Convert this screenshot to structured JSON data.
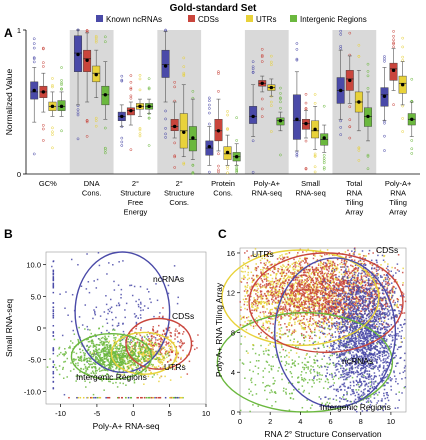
{
  "title": "Gold-standard Set",
  "legend": [
    {
      "name": "Known ncRNAs",
      "color": "#4a4aa8"
    },
    {
      "name": "CDSs",
      "color": "#c9453c"
    },
    {
      "name": "UTRs",
      "color": "#e8d23a"
    },
    {
      "name": "Intergenic Regions",
      "color": "#6bb83e"
    }
  ],
  "chart_data": [
    {
      "panel": "A",
      "type": "box",
      "ylabel": "Normalized Value",
      "ylim": [
        0,
        1
      ],
      "yticks": [
        "0",
        "1"
      ],
      "categories": [
        {
          "label": [
            "GC%"
          ],
          "shaded": false
        },
        {
          "label": [
            "DNA",
            "Cons."
          ],
          "shaded": true
        },
        {
          "label": [
            "2°",
            "Structure",
            "Free",
            "Energy"
          ],
          "shaded": false
        },
        {
          "label": [
            "2°",
            "Structure",
            "Cons."
          ],
          "shaded": true
        },
        {
          "label": [
            "Protein",
            "Cons."
          ],
          "shaded": false
        },
        {
          "label": [
            "Poly-A+",
            "RNA-seq"
          ],
          "shaded": true
        },
        {
          "label": [
            "Small",
            "RNA-seq"
          ],
          "shaded": false
        },
        {
          "label": [
            "Total",
            "RNA",
            "Tiling",
            "Array"
          ],
          "shaded": true
        },
        {
          "label": [
            "Poly-A+",
            "RNA",
            "Tiling",
            "Array"
          ],
          "shaded": false
        }
      ],
      "boxes": [
        [
          [
            0.36,
            0.52,
            0.57,
            0.64,
            0.74
          ],
          [
            0.43,
            0.53,
            0.57,
            0.61,
            0.7
          ],
          [
            0.4,
            0.44,
            0.47,
            0.5,
            0.57
          ],
          [
            0.4,
            0.44,
            0.47,
            0.51,
            0.57
          ]
        ],
        [
          [
            0.48,
            0.71,
            0.84,
            0.96,
            1.0
          ],
          [
            0.5,
            0.71,
            0.8,
            0.86,
            0.98
          ],
          [
            0.53,
            0.64,
            0.7,
            0.75,
            0.86
          ],
          [
            0.38,
            0.48,
            0.55,
            0.61,
            0.78
          ]
        ],
        [
          [
            0.33,
            0.37,
            0.4,
            0.43,
            0.48
          ],
          [
            0.34,
            0.41,
            0.44,
            0.46,
            0.5
          ],
          [
            0.4,
            0.45,
            0.47,
            0.49,
            0.52
          ],
          [
            0.42,
            0.45,
            0.47,
            0.49,
            0.52
          ]
        ],
        [
          [
            0.5,
            0.67,
            0.76,
            0.86,
            0.99
          ],
          [
            0.25,
            0.3,
            0.33,
            0.38,
            0.5
          ],
          [
            0.12,
            0.18,
            0.3,
            0.42,
            0.62
          ],
          [
            0.1,
            0.16,
            0.24,
            0.33,
            0.52
          ]
        ],
        [
          [
            0.06,
            0.13,
            0.18,
            0.23,
            0.33
          ],
          [
            0.16,
            0.23,
            0.3,
            0.38,
            0.52
          ],
          [
            0.06,
            0.1,
            0.14,
            0.19,
            0.27
          ],
          [
            0.06,
            0.09,
            0.12,
            0.15,
            0.21
          ]
        ],
        [
          [
            0.26,
            0.35,
            0.4,
            0.47,
            0.62
          ],
          [
            0.57,
            0.61,
            0.63,
            0.65,
            0.68
          ],
          [
            0.54,
            0.58,
            0.6,
            0.62,
            0.66
          ],
          [
            0.3,
            0.34,
            0.37,
            0.39,
            0.43
          ]
        ],
        [
          [
            0.16,
            0.24,
            0.37,
            0.55,
            0.71
          ],
          [
            0.25,
            0.31,
            0.35,
            0.38,
            0.44
          ],
          [
            0.17,
            0.25,
            0.3,
            0.37,
            0.47
          ],
          [
            0.15,
            0.2,
            0.24,
            0.28,
            0.34
          ]
        ],
        [
          [
            0.38,
            0.49,
            0.58,
            0.67,
            0.86
          ],
          [
            0.49,
            0.58,
            0.66,
            0.72,
            0.82
          ],
          [
            0.3,
            0.43,
            0.5,
            0.57,
            0.72
          ],
          [
            0.23,
            0.33,
            0.4,
            0.46,
            0.57
          ]
        ],
        [
          [
            0.37,
            0.47,
            0.55,
            0.6,
            0.74
          ],
          [
            0.58,
            0.65,
            0.73,
            0.77,
            0.87
          ],
          [
            0.48,
            0.56,
            0.63,
            0.68,
            0.78
          ],
          [
            0.26,
            0.34,
            0.38,
            0.42,
            0.5
          ]
        ]
      ],
      "means": [
        [
          0.58,
          0.57,
          0.47,
          0.47
        ],
        [
          0.83,
          0.79,
          0.69,
          0.55
        ],
        [
          0.4,
          0.44,
          0.47,
          0.47
        ],
        [
          0.75,
          0.33,
          0.29,
          0.25
        ],
        [
          0.19,
          0.3,
          0.15,
          0.12
        ],
        [
          0.4,
          0.63,
          0.6,
          0.37
        ],
        [
          0.38,
          0.35,
          0.31,
          0.25
        ],
        [
          0.58,
          0.65,
          0.5,
          0.4
        ],
        [
          0.54,
          0.72,
          0.62,
          0.38
        ]
      ]
    },
    {
      "panel": "B",
      "type": "scatter",
      "xlabel": "Poly-A+ RNA-seq",
      "ylabel": "Small RNA-seq",
      "xlim": [
        -12,
        10
      ],
      "ylim": [
        -12,
        12
      ],
      "xticks": [
        "-10",
        "-5",
        "0",
        "5",
        "10"
      ],
      "yticks": [
        "10.0",
        "5.0",
        "0",
        "-5.0",
        "-10.0"
      ],
      "annotations": [
        "ncRNAs",
        "CDSs",
        "UTRs",
        "Intergenic Regions"
      ],
      "clusters": [
        {
          "series": "Known ncRNAs",
          "center": [
            -2,
            2.5
          ],
          "spread": [
            3.5,
            4.5
          ],
          "ellipse": {
            "cx": -1.5,
            "cy": 2.5,
            "rx": 6.5,
            "ry": 9.5
          }
        },
        {
          "series": "CDSs",
          "center": [
            3.5,
            -2.5
          ],
          "spread": [
            2.2,
            1.8
          ],
          "ellipse": {
            "cx": 3.5,
            "cy": -2.5,
            "rx": 4.5,
            "ry": 4.0
          }
        },
        {
          "series": "UTRs",
          "center": [
            1.5,
            -4.5
          ],
          "spread": [
            2.5,
            1.5
          ],
          "ellipse": {
            "cx": 1.5,
            "cy": -4.0,
            "rx": 4.5,
            "ry": 3.3
          }
        },
        {
          "series": "Intergenic Regions",
          "center": [
            -3,
            -4.5
          ],
          "spread": [
            3.0,
            1.6
          ],
          "ellipse": {
            "cx": -3.0,
            "cy": -4.5,
            "rx": 5.5,
            "ry": 3.6
          }
        }
      ]
    },
    {
      "panel": "C",
      "type": "scatter",
      "xlabel": "RNA 2° Structure Conservation",
      "ylabel": "Poly-A+ RNA Tiling Array",
      "xlim": [
        0,
        11
      ],
      "ylim": [
        0,
        16.5
      ],
      "xticks": [
        "0",
        "2",
        "4",
        "6",
        "8",
        "10"
      ],
      "yticks": [
        "0",
        "4",
        "8",
        "12",
        "16"
      ],
      "annotations": [
        "UTRs",
        "CDSs",
        "ncRNAs",
        "Intergenic Regions"
      ],
      "clusters": [
        {
          "series": "Intergenic Regions",
          "center": [
            4.0,
            4.5
          ],
          "spread": [
            3.0,
            2.5
          ],
          "ellipse": {
            "cx": 4.3,
            "cy": 5.0,
            "rx": 5.8,
            "ry": 5.0
          }
        },
        {
          "series": "UTRs",
          "center": [
            4.2,
            12.0
          ],
          "spread": [
            2.8,
            2.2
          ],
          "ellipse": {
            "cx": 4.0,
            "cy": 11.5,
            "rx": 5.2,
            "ry": 4.8
          }
        },
        {
          "series": "CDSs",
          "center": [
            5.5,
            12.0
          ],
          "spread": [
            2.5,
            1.9
          ],
          "ellipse": {
            "cx": 5.7,
            "cy": 11.0,
            "rx": 5.1,
            "ry": 5.0
          }
        },
        {
          "series": "Known ncRNAs",
          "center": [
            8.2,
            7.5
          ],
          "spread": [
            1.2,
            3.5
          ],
          "ellipse": {
            "cx": 6.3,
            "cy": 8.0,
            "rx": 4.0,
            "ry": 7.5
          }
        }
      ]
    }
  ]
}
